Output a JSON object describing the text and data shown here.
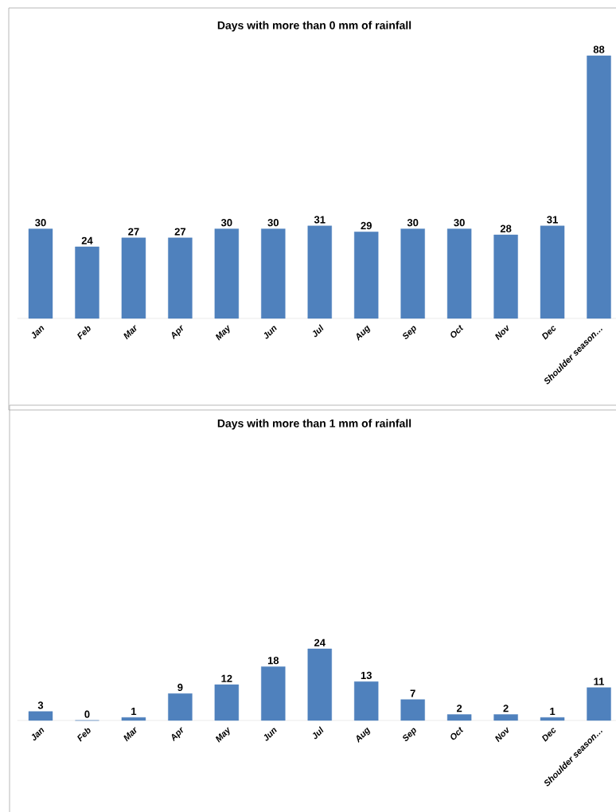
{
  "chart_data": [
    {
      "type": "bar",
      "title": "Days with more than 0 mm of rainfall",
      "categories": [
        "Jan",
        "Feb",
        "Mar",
        "Apr",
        "May",
        "Jun",
        "Jul",
        "Aug",
        "Sep",
        "Oct",
        "Nov",
        "Dec",
        "Shoulder season…"
      ],
      "values": [
        30,
        24,
        27,
        27,
        30,
        30,
        31,
        29,
        30,
        30,
        28,
        31,
        88
      ],
      "color": "#4f81bd",
      "data_labels": true
    },
    {
      "type": "bar",
      "title": "Days with more than 1 mm of rainfall",
      "categories": [
        "Jan",
        "Feb",
        "Mar",
        "Apr",
        "May",
        "Jun",
        "Jul",
        "Aug",
        "Sep",
        "Oct",
        "Nov",
        "Dec",
        "Shoulder season…"
      ],
      "values": [
        3,
        0,
        1,
        9,
        12,
        18,
        24,
        13,
        7,
        2,
        2,
        1,
        11
      ],
      "color": "#4f81bd",
      "data_labels": true
    }
  ]
}
